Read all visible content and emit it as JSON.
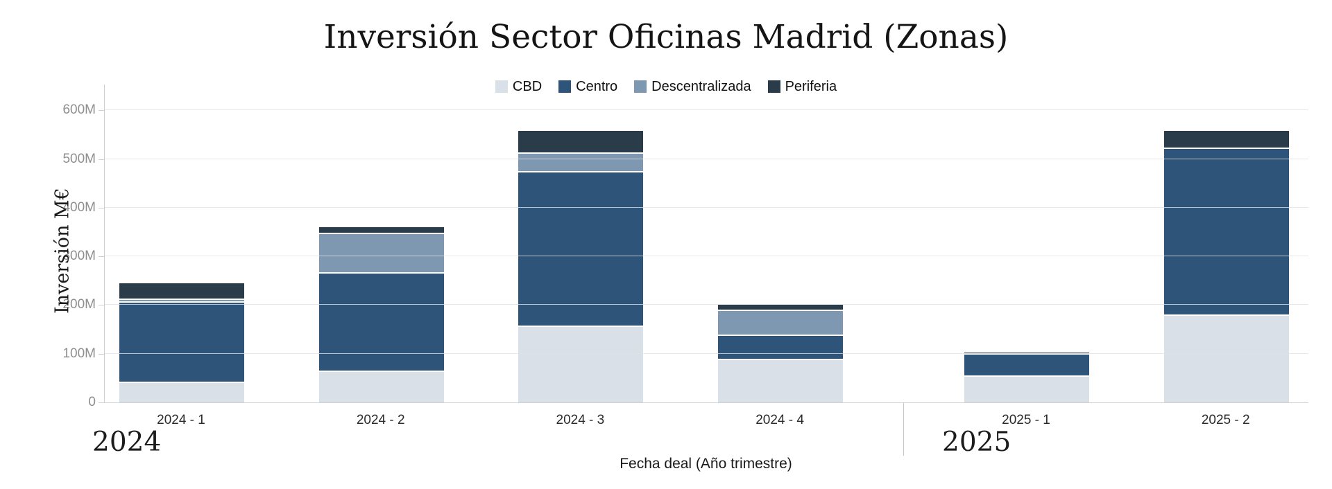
{
  "title": "Inversión Sector Oficinas Madrid (Zonas)",
  "legend": {
    "items": [
      {
        "label": "CBD",
        "color": "#d9e0e8"
      },
      {
        "label": "Centro",
        "color": "#2f547a"
      },
      {
        "label": "Descentralizada",
        "color": "#7d98b0"
      },
      {
        "label": "Periferia",
        "color": "#2a3b49"
      }
    ]
  },
  "chart_data": {
    "type": "bar",
    "stacked": true,
    "title": "Inversión Sector Oficinas Madrid (Zonas)",
    "xlabel": "Fecha deal (Año trimestre)",
    "ylabel": "Inversión M€",
    "categories": [
      "2024 - 1",
      "2024 - 2",
      "2024 - 3",
      "2024 - 4",
      "2025 - 1",
      "2025 - 2"
    ],
    "groups": [
      {
        "label": "2024",
        "category_indices": [
          0,
          1,
          2,
          3
        ]
      },
      {
        "label": "2025",
        "category_indices": [
          4,
          5
        ]
      }
    ],
    "series": [
      {
        "name": "CBD",
        "color": "#d9e0e8",
        "values": [
          40,
          62,
          155,
          87,
          53,
          178
        ]
      },
      {
        "name": "Centro",
        "color": "#2f547a",
        "values": [
          165,
          202,
          317,
          50,
          45,
          342
        ]
      },
      {
        "name": "Descentralizada",
        "color": "#7d98b0",
        "values": [
          5,
          82,
          39,
          51,
          0,
          0
        ]
      },
      {
        "name": "Periferia",
        "color": "#2a3b49",
        "values": [
          35,
          14,
          47,
          13,
          5,
          38
        ]
      }
    ],
    "stack_totals": [
      245,
      360,
      558,
      201,
      103,
      558
    ],
    "ylim": [
      0,
      600
    ],
    "yticks": [
      {
        "value": 0,
        "label": "0"
      },
      {
        "value": 100,
        "label": "100M"
      },
      {
        "value": 200,
        "label": "200M"
      },
      {
        "value": 300,
        "label": "300M"
      },
      {
        "value": 400,
        "label": "400M"
      },
      {
        "value": 500,
        "label": "500M"
      },
      {
        "value": 600,
        "label": "600M"
      }
    ],
    "grid": true,
    "legend_position": "top"
  },
  "colors": {
    "gridline": "#e7e7e7",
    "axis_line": "#cfcfcf",
    "group_divider": "#c6c6c6",
    "ytick_text": "#8e8e8e",
    "xtick_text": "#2b2b2b",
    "segment_separator": "#ffffff"
  }
}
